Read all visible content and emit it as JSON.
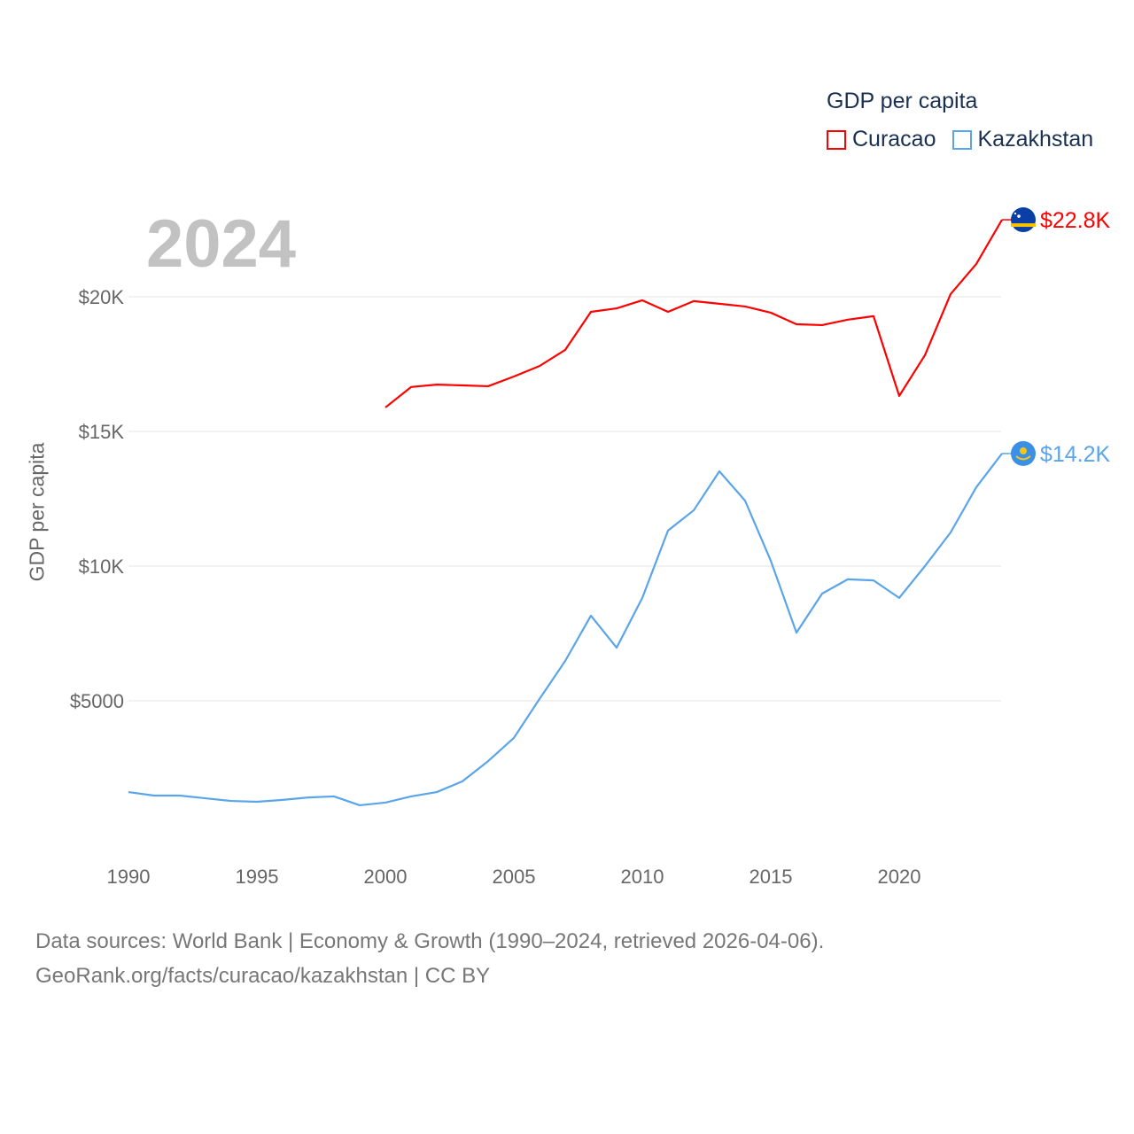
{
  "chart_data": {
    "type": "line",
    "title": "GDP per capita",
    "ylabel": "GDP per capita",
    "xlabel": "",
    "year_label": "2024",
    "x": [
      1990,
      1991,
      1992,
      1993,
      1994,
      1995,
      1996,
      1997,
      1998,
      1999,
      2000,
      2001,
      2002,
      2003,
      2004,
      2005,
      2006,
      2007,
      2008,
      2009,
      2010,
      2011,
      2012,
      2013,
      2014,
      2015,
      2016,
      2017,
      2018,
      2019,
      2020,
      2021,
      2022,
      2023,
      2024
    ],
    "xlim": [
      1990,
      2024
    ],
    "ylim": [
      0,
      23000
    ],
    "x_ticks": [
      1990,
      1995,
      2000,
      2005,
      2010,
      2015,
      2020
    ],
    "x_tick_labels": [
      "1990",
      "1995",
      "2000",
      "2005",
      "2010",
      "2015",
      "2020"
    ],
    "y_ticks": [
      5000,
      10000,
      15000,
      20000
    ],
    "y_tick_labels": [
      "$5000",
      "$10K",
      "$15K",
      "$20K"
    ],
    "grid": true,
    "legend_placement": "top-right",
    "series": [
      {
        "name": "Curacao",
        "color": "#ff0000",
        "end_label": "$22.8K",
        "values": [
          null,
          null,
          null,
          null,
          null,
          null,
          null,
          null,
          null,
          null,
          15890,
          16650,
          16740,
          16710,
          16680,
          17040,
          17430,
          18030,
          19440,
          19570,
          19870,
          19440,
          19840,
          19740,
          19640,
          19410,
          18980,
          18950,
          19150,
          19280,
          16320,
          17830,
          20100,
          21220,
          22860
        ]
      },
      {
        "name": "Kazakhstan",
        "color": "#5aa5ea",
        "end_label": "$14.2K",
        "values": [
          1610,
          1480,
          1480,
          1380,
          1280,
          1250,
          1320,
          1410,
          1450,
          1120,
          1220,
          1450,
          1610,
          2010,
          2760,
          3620,
          5070,
          6480,
          8160,
          6970,
          8820,
          11320,
          12070,
          13520,
          12430,
          10200,
          7530,
          8980,
          9510,
          9470,
          8820,
          10000,
          11250,
          12930,
          14180
        ]
      }
    ]
  },
  "legend": {
    "title": "GDP per capita",
    "items": [
      "Curacao",
      "Kazakhstan"
    ]
  },
  "footer": {
    "line1": "Data sources: World Bank | Economy & Growth (1990–2024, retrieved 2026-04-06).",
    "line2": "GeoRank.org/facts/curacao/kazakhstan | CC BY"
  }
}
